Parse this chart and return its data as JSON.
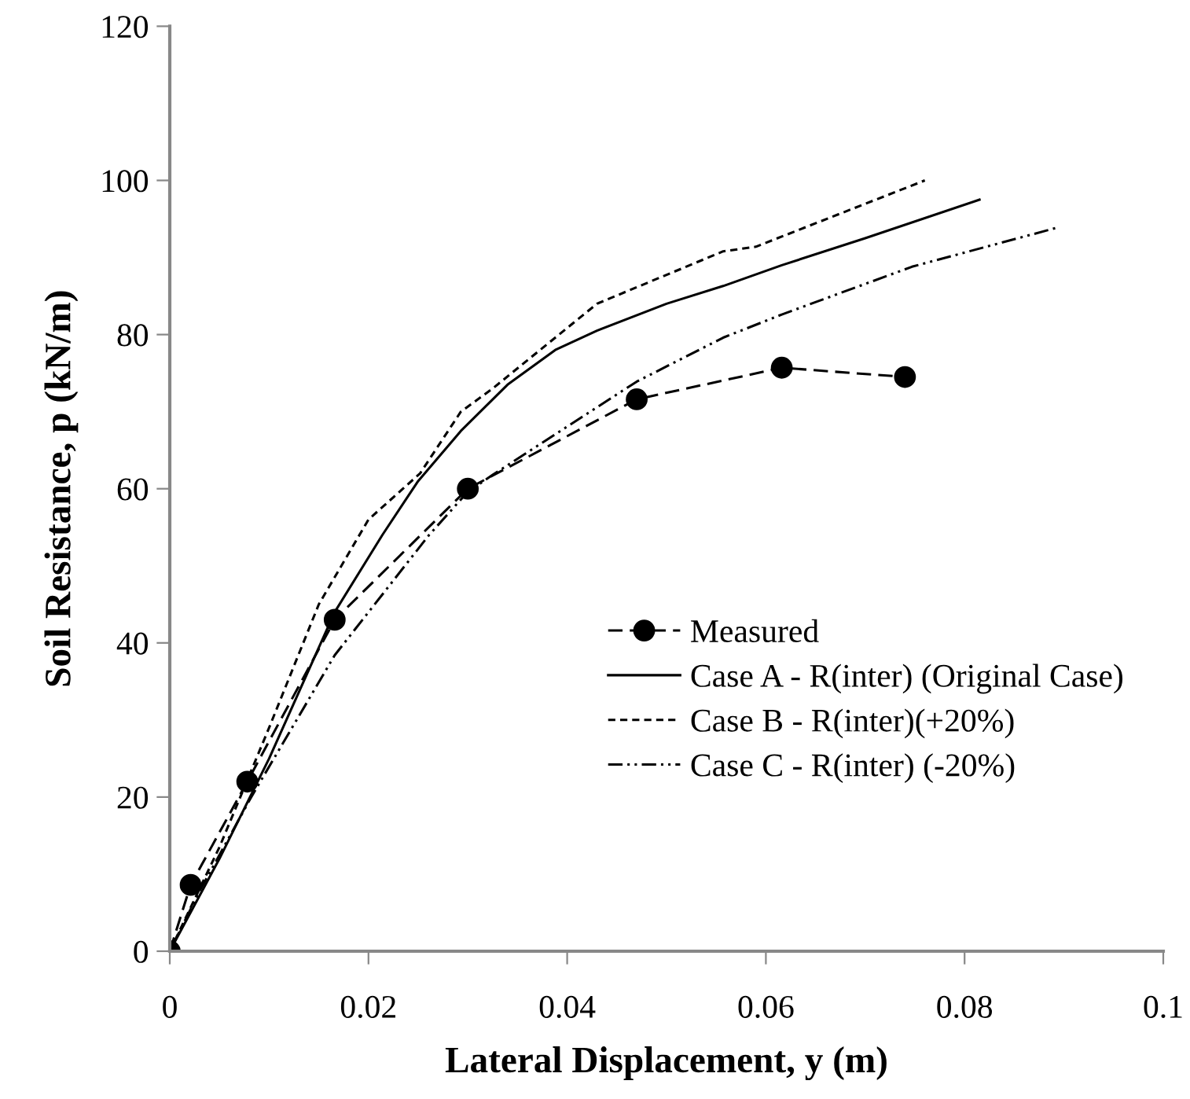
{
  "chart_data": {
    "type": "line",
    "xlabel": "Lateral Displacement, y (m)",
    "ylabel": "Soil Resistance, p (kN/m)",
    "xlim": [
      0,
      0.1
    ],
    "xticks": [
      0,
      0.02,
      0.04,
      0.06,
      0.08,
      0.1
    ],
    "ylim": [
      0,
      120
    ],
    "yticks": [
      0,
      20,
      40,
      60,
      80,
      100,
      120
    ],
    "grid": false,
    "legend": "bottom right",
    "series": [
      {
        "name": "Measured",
        "color": "#000000",
        "line_style": "dashed",
        "marker": "circle",
        "x": [
          0,
          0.0021,
          0.0078,
          0.0166,
          0.03,
          0.047,
          0.0616,
          0.074
        ],
        "values": [
          0,
          8.6,
          22,
          43,
          60,
          71.6,
          75.7,
          74.5
        ]
      },
      {
        "name": "Case A - R(inter) (Original Case)",
        "color": "#000000",
        "line_style": "solid",
        "marker": "none",
        "x": [
          0,
          0.005,
          0.01,
          0.0166,
          0.0214,
          0.025,
          0.0293,
          0.034,
          0.0388,
          0.043,
          0.05,
          0.0557,
          0.0616,
          0.07,
          0.0815
        ],
        "values": [
          0,
          12,
          25,
          44,
          54,
          61,
          67.5,
          73.5,
          78,
          80.5,
          84,
          86.3,
          89,
          92.5,
          97.5
        ]
      },
      {
        "name": "Case B - R(inter)(+20%)",
        "color": "#000000",
        "line_style": "dotted",
        "marker": "none",
        "x": [
          0,
          0.005,
          0.01,
          0.015,
          0.02,
          0.0252,
          0.0293,
          0.0325,
          0.043,
          0.0557,
          0.059,
          0.076
        ],
        "values": [
          0,
          13.5,
          29,
          45,
          56,
          62,
          70,
          73,
          84,
          90.8,
          91.4,
          100
        ]
      },
      {
        "name": "Case C - R(inter) (-20%)",
        "color": "#000000",
        "line_style": "dashdot",
        "marker": "none",
        "x": [
          0,
          0.003,
          0.0082,
          0.0166,
          0.0261,
          0.03,
          0.0325,
          0.047,
          0.0557,
          0.0616,
          0.0747,
          0.0894
        ],
        "values": [
          0,
          7.8,
          20,
          38.4,
          54,
          59.6,
          61.8,
          73.9,
          79.6,
          82.6,
          88.8,
          93.9
        ]
      }
    ]
  }
}
